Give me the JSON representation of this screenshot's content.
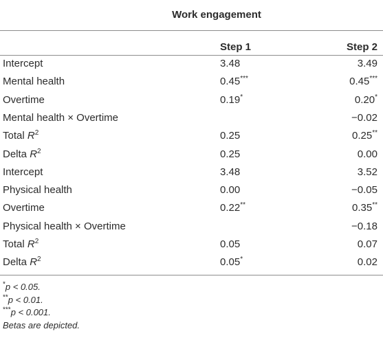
{
  "table": {
    "title": "Work engagement",
    "columns": [
      "Step 1",
      "Step 2"
    ],
    "rows": [
      {
        "label": {
          "text": "Intercept"
        },
        "cells": [
          {
            "text": "3.48"
          },
          {
            "text": "3.49"
          }
        ]
      },
      {
        "label": {
          "text": "Mental health"
        },
        "cells": [
          {
            "text": "0.45",
            "sup": "***"
          },
          {
            "text": "0.45",
            "sup": "***"
          }
        ]
      },
      {
        "label": {
          "text": "Overtime"
        },
        "cells": [
          {
            "text": "0.19",
            "sup": "*"
          },
          {
            "text": "0.20",
            "sup": "*"
          }
        ]
      },
      {
        "label": {
          "text": "Mental health × Overtime"
        },
        "cells": [
          null,
          {
            "text": "−0.02"
          }
        ]
      },
      {
        "label": {
          "text": "Total ",
          "italic": "R",
          "sup": "2"
        },
        "cells": [
          {
            "text": "0.25"
          },
          {
            "text": "0.25",
            "sup": "**"
          }
        ]
      },
      {
        "label": {
          "text": "Delta ",
          "italic": "R",
          "sup": "2"
        },
        "cells": [
          {
            "text": "0.25"
          },
          {
            "text": "0.00"
          }
        ]
      },
      {
        "label": {
          "text": "Intercept"
        },
        "cells": [
          {
            "text": "3.48"
          },
          {
            "text": "3.52"
          }
        ]
      },
      {
        "label": {
          "text": "Physical health"
        },
        "cells": [
          {
            "text": "0.00"
          },
          {
            "text": "−0.05"
          }
        ]
      },
      {
        "label": {
          "text": "Overtime"
        },
        "cells": [
          {
            "text": "0.22",
            "sup": "**"
          },
          {
            "text": "0.35",
            "sup": "**"
          }
        ]
      },
      {
        "label": {
          "text": "Physical health × Overtime"
        },
        "cells": [
          null,
          {
            "text": "−0.18"
          }
        ]
      },
      {
        "label": {
          "text": "Total ",
          "italic": "R",
          "sup": "2"
        },
        "cells": [
          {
            "text": "0.05"
          },
          {
            "text": "0.07"
          }
        ]
      },
      {
        "label": {
          "text": "Delta ",
          "italic": "R",
          "sup": "2"
        },
        "cells": [
          {
            "text": "0.05",
            "sup": "*"
          },
          {
            "text": "0.02"
          }
        ]
      }
    ],
    "footnotes": [
      {
        "sup": "*",
        "italic": "p < 0.05."
      },
      {
        "sup": "**",
        "italic": "p < 0.01."
      },
      {
        "sup": "***",
        "italic": "p < 0.001."
      },
      {
        "italic": "Betas are depicted."
      }
    ]
  }
}
